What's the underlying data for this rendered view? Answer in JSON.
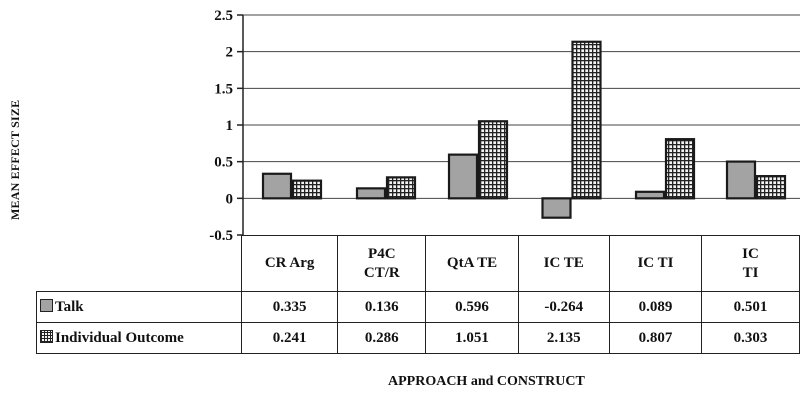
{
  "chart_data": {
    "type": "bar",
    "categories": [
      "CR Arg",
      "P4C\nCT/R",
      "QtA TE",
      "IC  TE",
      "IC TI",
      "IC\nTI"
    ],
    "series": [
      {
        "name": "Talk",
        "values": [
          0.335,
          0.136,
          0.596,
          -0.264,
          0.089,
          0.501
        ]
      },
      {
        "name": "Individual Outcome",
        "values": [
          0.241,
          0.286,
          1.051,
          2.135,
          0.807,
          0.303
        ]
      }
    ],
    "value_labels": {
      "Talk": [
        "0.335",
        "0.136",
        "0.596",
        "-0.264",
        "0.089",
        "0.501"
      ],
      "Individual Outcome": [
        "0.241",
        "0.286",
        "1.051",
        "2.135",
        "0.807",
        "0.303"
      ]
    },
    "yticks": [
      "2.5",
      "2",
      "1.5",
      "1",
      "0.5",
      "0",
      "-0.5"
    ],
    "ytick_values": [
      2.5,
      2,
      1.5,
      1,
      0.5,
      0,
      -0.5
    ],
    "ylim": [
      -0.5,
      2.5
    ],
    "ylabel": "MEAN EFFECT SIZE",
    "xlabel": "APPROACH and CONSTRUCT",
    "grid": true,
    "legend": "data table",
    "colors": {
      "talk": "#a3a3a3",
      "individual_outcome_pattern": "#222222",
      "individual_outcome_bg": "#f4f4f4"
    }
  }
}
